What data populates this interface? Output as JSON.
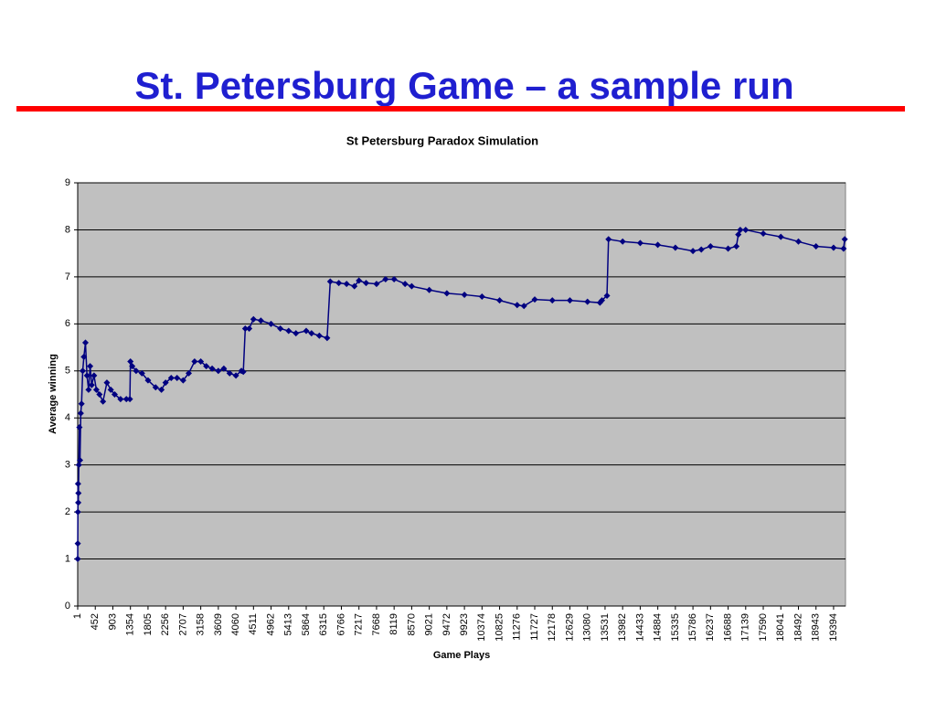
{
  "slide_title": "St. Petersburg Game – a sample run",
  "chart_data": {
    "type": "line",
    "title": "St Petersburg Paradox Simulation",
    "x_label": "Game Plays",
    "y_label": "Average winning",
    "x": [
      1,
      3,
      6,
      10,
      15,
      20,
      30,
      45,
      60,
      80,
      100,
      130,
      160,
      200,
      240,
      280,
      320,
      360,
      420,
      480,
      560,
      650,
      750,
      850,
      950,
      1100,
      1250,
      1340,
      1354,
      1400,
      1500,
      1650,
      1805,
      2000,
      2150,
      2256,
      2400,
      2550,
      2707,
      2850,
      3000,
      3158,
      3300,
      3450,
      3609,
      3750,
      3900,
      4060,
      4200,
      4250,
      4300,
      4400,
      4511,
      4700,
      4962,
      5200,
      5413,
      5600,
      5864,
      6000,
      6200,
      6400,
      6480,
      6700,
      6900,
      7100,
      7217,
      7400,
      7668,
      7900,
      8119,
      8400,
      8570,
      9021,
      9472,
      9923,
      10374,
      10825,
      11276,
      11450,
      11727,
      12178,
      12629,
      13080,
      13400,
      13450,
      13580,
      13620,
      13982,
      14433,
      14884,
      15335,
      15786,
      16000,
      16237,
      16688,
      16900,
      16950,
      17000,
      17139,
      17590,
      18041,
      18492,
      18943,
      19394,
      19650,
      19680
    ],
    "series": [
      {
        "name": "Average winning",
        "color": "#000080",
        "values": [
          1,
          1.33,
          2,
          2.6,
          2.2,
          2.4,
          3,
          3.8,
          3.1,
          4.1,
          4.3,
          5,
          5.3,
          5.6,
          4.9,
          4.6,
          5.1,
          4.7,
          4.9,
          4.6,
          4.5,
          4.35,
          4.75,
          4.6,
          4.5,
          4.4,
          4.4,
          4.4,
          5.2,
          5.1,
          5,
          4.95,
          4.8,
          4.65,
          4.6,
          4.75,
          4.85,
          4.85,
          4.8,
          4.95,
          5.2,
          5.2,
          5.1,
          5.05,
          5,
          5.05,
          4.95,
          4.9,
          5,
          4.98,
          5.9,
          5.9,
          6.1,
          6.07,
          6,
          5.9,
          5.85,
          5.8,
          5.85,
          5.8,
          5.75,
          5.7,
          6.9,
          6.87,
          6.85,
          6.8,
          6.92,
          6.87,
          6.85,
          6.95,
          6.95,
          6.85,
          6.8,
          6.72,
          6.65,
          6.62,
          6.58,
          6.5,
          6.4,
          6.38,
          6.52,
          6.5,
          6.5,
          6.47,
          6.45,
          6.5,
          6.6,
          7.8,
          7.75,
          7.72,
          7.68,
          7.62,
          7.55,
          7.58,
          7.65,
          7.6,
          7.65,
          7.9,
          8,
          8,
          7.92,
          7.85,
          7.75,
          7.65,
          7.62,
          7.6,
          7.8
        ]
      }
    ],
    "xlim": [
      1,
      19700
    ],
    "xticks": [
      1,
      452,
      903,
      1354,
      1805,
      2256,
      2707,
      3158,
      3609,
      4060,
      4511,
      4962,
      5413,
      5864,
      6315,
      6766,
      7217,
      7668,
      8119,
      8570,
      9021,
      9472,
      9923,
      10374,
      10825,
      11276,
      11727,
      12178,
      12629,
      13080,
      13531,
      13982,
      14433,
      14884,
      15335,
      15786,
      16237,
      16688,
      17139,
      17590,
      18041,
      18492,
      18943,
      19394
    ],
    "ylim": [
      0,
      9
    ],
    "yticks": [
      0,
      1,
      2,
      3,
      4,
      5,
      6,
      7,
      8,
      9
    ],
    "grid": true,
    "plot_background": "#c0c0c0"
  }
}
